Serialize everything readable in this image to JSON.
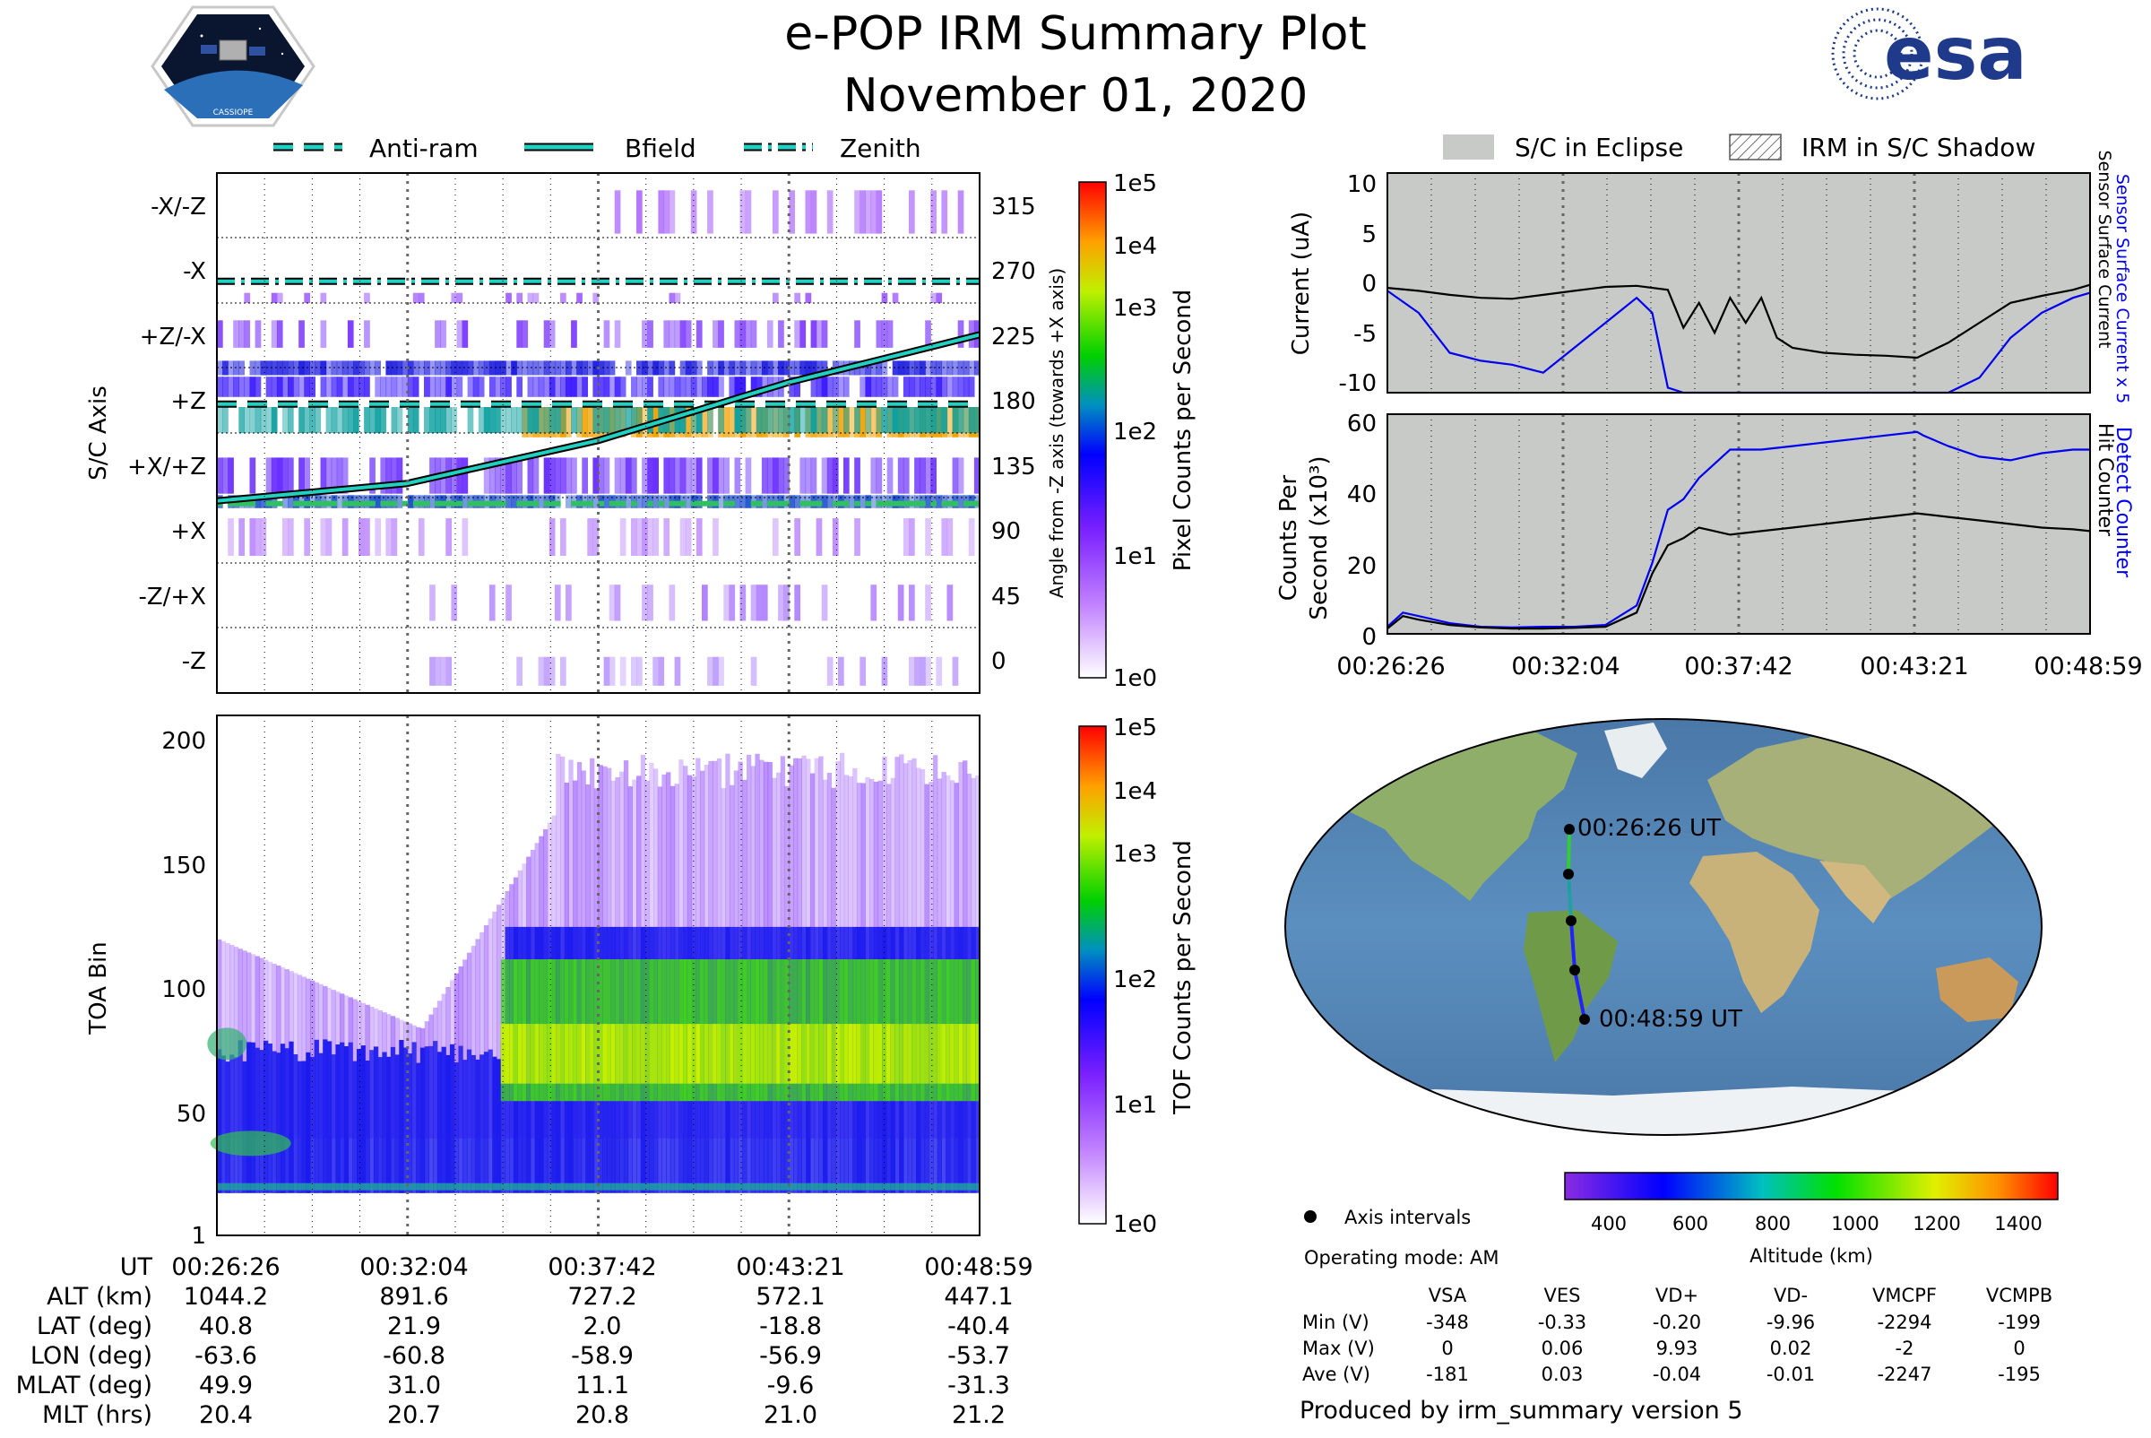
{
  "header": {
    "title": "e-POP IRM Summary Plot",
    "date": "November 01, 2020",
    "mission_logo_text": "CASSIOPE",
    "agency_logo_text": "esa"
  },
  "colors": {
    "cyan": "#20d0c0",
    "eclipse_gray": "#c8cac8",
    "current_blue": "#0000ee",
    "track_green": "#33cc33",
    "track_blue": "#2222ff"
  },
  "legend_left": {
    "items": [
      "Anti-ram",
      "Bfield",
      "Zenith"
    ]
  },
  "legend_right": {
    "items": [
      "S/C in Eclipse",
      "IRM in S/C Shadow"
    ]
  },
  "chart_data": [
    {
      "type": "heatmap",
      "name": "sc-axis-pixel-counts",
      "ylabel": "S/C Axis",
      "y_tick_labels": [
        "-X/-Z",
        "-X",
        "+Z/-X",
        "+Z",
        "+X/+Z",
        "+X",
        "-Z/+X",
        "-Z"
      ],
      "right_ylabel": "Angle from -Z axis (towards +X axis)",
      "right_ticks": [
        "315",
        "270",
        "225",
        "180",
        "135",
        "90",
        "45",
        "0"
      ],
      "right_ylim": [
        -15,
        345
      ],
      "colorbar_label": "Pixel Counts per Second",
      "colorbar_ticks": [
        "1e5",
        "1e4",
        "1e3",
        "1e2",
        "1e1",
        "1e0"
      ],
      "series": [
        {
          "name": "Anti-ram",
          "style": "dashed",
          "x": [
            0,
            22.55
          ],
          "angle": [
            185,
            185
          ]
        },
        {
          "name": "Bfield",
          "style": "solid",
          "x": [
            0,
            5.6,
            11.3,
            16.9,
            22.55
          ],
          "angle": [
            118,
            130,
            160,
            200,
            233
          ]
        },
        {
          "name": "Zenith",
          "style": "dash-dot",
          "x": [
            0,
            22.55
          ],
          "angle": [
            270,
            270
          ]
        }
      ]
    },
    {
      "type": "heatmap",
      "name": "toa-bin-counts",
      "ylabel": "TOA Bin",
      "y_ticks": [
        "200",
        "150",
        "100",
        "50",
        "1"
      ],
      "ylim": [
        1,
        210
      ],
      "colorbar_label": "TOF Counts per Second",
      "colorbar_ticks": [
        "1e5",
        "1e4",
        "1e3",
        "1e2",
        "1e1",
        "1e0"
      ]
    },
    {
      "type": "line",
      "name": "sensor-current",
      "ylabel": "Current (uA)",
      "y_ticks": [
        "10",
        "5",
        "0",
        "-5",
        "-10"
      ],
      "ylim": [
        -11,
        11
      ],
      "right_labels": [
        "Sensor Surface Current x 5",
        "Sensor Surface Current"
      ],
      "series": [
        {
          "name": "Sensor Surface Current",
          "x": [
            0,
            1,
            2,
            3,
            4,
            5,
            6,
            7,
            8,
            9,
            9.5,
            10,
            10.5,
            11,
            11.5,
            12,
            12.5,
            13,
            14,
            15,
            16,
            17,
            18,
            19,
            20,
            21,
            22,
            22.55
          ],
          "y": [
            -0.5,
            -0.8,
            -1.2,
            -1.5,
            -1.6,
            -1.2,
            -0.8,
            -0.4,
            -0.3,
            -0.7,
            -4.5,
            -2,
            -5,
            -1.5,
            -4,
            -1.5,
            -5.5,
            -6.5,
            -7,
            -7.2,
            -7.3,
            -7.5,
            -6,
            -4,
            -2,
            -1.3,
            -0.7,
            -0.2
          ]
        },
        {
          "name": "Sensor Surface Current x 5",
          "x": [
            0,
            1,
            2,
            3,
            4,
            5,
            6,
            7,
            8,
            8.5,
            9,
            9.5,
            10,
            11,
            12,
            13,
            14,
            15,
            16,
            17,
            18,
            19,
            20,
            21,
            22,
            22.55
          ],
          "y": [
            -0.8,
            -3,
            -7,
            -7.8,
            -8.2,
            -9,
            -6.5,
            -4,
            -1.5,
            -3,
            -10.5,
            -11,
            -11,
            -11,
            -11,
            -11,
            -11,
            -11,
            -11,
            -11,
            -11,
            -9.5,
            -5.5,
            -3,
            -1.5,
            -1
          ]
        }
      ]
    },
    {
      "type": "line",
      "name": "detect-counter",
      "ylabel": "Counts Per Second (x10³)",
      "y_ticks": [
        "60",
        "40",
        "20",
        "0"
      ],
      "ylim": [
        0,
        62
      ],
      "right_labels": [
        "Detect Counter",
        "Hit Counter"
      ],
      "series": [
        {
          "name": "Detect Counter",
          "x": [
            0,
            0.5,
            1,
            2,
            3,
            4,
            5,
            6,
            7,
            8,
            8.5,
            9,
            9.5,
            10,
            11,
            12,
            13,
            14,
            15,
            16,
            17,
            17.2,
            18,
            19,
            20,
            21,
            22,
            22.55
          ],
          "y": [
            2,
            6,
            5,
            3,
            2,
            1.8,
            2,
            2,
            2.5,
            8,
            20,
            35,
            38,
            44,
            52,
            52,
            53,
            54,
            55,
            56,
            57,
            56,
            53,
            50,
            49,
            51,
            52,
            52
          ]
        },
        {
          "name": "Hit Counter",
          "x": [
            0,
            0.5,
            1,
            2,
            3,
            4,
            5,
            6,
            7,
            8,
            8.5,
            9,
            9.5,
            10,
            11,
            12,
            13,
            14,
            15,
            16,
            17,
            18,
            19,
            20,
            21,
            22,
            22.55
          ],
          "y": [
            1.5,
            5,
            4,
            2.5,
            1.8,
            1.5,
            1.5,
            1.7,
            2,
            6,
            17,
            25,
            27,
            30,
            28,
            29,
            30,
            31,
            32,
            33,
            34,
            33,
            32,
            31,
            30,
            29.5,
            29
          ]
        }
      ]
    }
  ],
  "time_ticks": [
    "00:26:26",
    "00:32:04",
    "00:37:42",
    "00:43:21",
    "00:48:59"
  ],
  "ephemeris": {
    "ut_label": "UT",
    "rows": [
      {
        "label": "ALT (km)",
        "values": [
          "1044.2",
          "891.6",
          "727.2",
          "572.1",
          "447.1"
        ]
      },
      {
        "label": "LAT (deg)",
        "values": [
          "40.8",
          "21.9",
          "2.0",
          "-18.8",
          "-40.4"
        ]
      },
      {
        "label": "LON (deg)",
        "values": [
          "-63.6",
          "-60.8",
          "-58.9",
          "-56.9",
          "-53.7"
        ]
      },
      {
        "label": "MLAT (deg)",
        "values": [
          "49.9",
          "31.0",
          "11.1",
          "-9.6",
          "-31.3"
        ]
      },
      {
        "label": "MLT (hrs)",
        "values": [
          "20.4",
          "20.7",
          "20.8",
          "21.0",
          "21.2"
        ]
      }
    ]
  },
  "map": {
    "start_label": "00:26:26 UT",
    "end_label": "00:48:59 UT",
    "altitude_colorbar": {
      "label": "Altitude (km)",
      "ticks": [
        "400",
        "600",
        "800",
        "1000",
        "1200",
        "1400"
      ]
    },
    "axis_intervals_label": "Axis intervals",
    "operating_mode": "Operating mode: AM"
  },
  "voltage_table": {
    "columns": [
      "VSA",
      "VES",
      "VD+",
      "VD-",
      "VMCPF",
      "VCMPB"
    ],
    "rows": [
      {
        "label": "Min (V)",
        "values": [
          "-348",
          "-0.33",
          "-0.20",
          "-9.96",
          "-2294",
          "-199"
        ]
      },
      {
        "label": "Max (V)",
        "values": [
          "0",
          "0.06",
          "9.93",
          "0.02",
          "-2",
          "0"
        ]
      },
      {
        "label": "Ave (V)",
        "values": [
          "-181",
          "0.03",
          "-0.04",
          "-0.01",
          "-2247",
          "-195"
        ]
      }
    ]
  },
  "footer": "Produced by irm_summary version 5"
}
